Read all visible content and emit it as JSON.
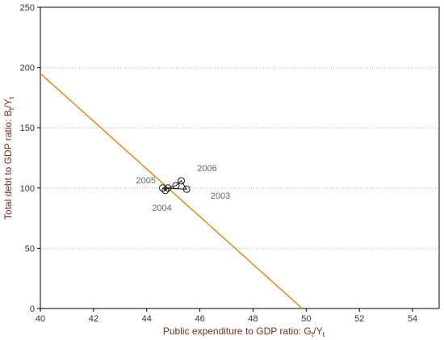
{
  "chart_data": {
    "type": "scatter",
    "title": "",
    "xlabel": {
      "main": "Public expenditure to GDP ratio: G",
      "sub1": "t",
      "mid": "/Y",
      "sub2": "t"
    },
    "ylabel": {
      "main": "Total debt to GDP ratio: B",
      "sub1": "t",
      "mid": "/Y",
      "sub2": "t"
    },
    "xlim": [
      40,
      55
    ],
    "ylim": [
      0,
      250
    ],
    "xticks": [
      "40",
      "42",
      "44",
      "46",
      "48",
      "50",
      "52",
      "54"
    ],
    "yticks": [
      "0",
      "50",
      "100",
      "150",
      "200",
      "250"
    ],
    "grid": true,
    "colors": {
      "line": "#e08a1e",
      "points": "#1a1a1a",
      "axis_text": "#7a2e1e",
      "grid": "#bbbbbb"
    },
    "line": {
      "name": "",
      "x": [
        40,
        49.85
      ],
      "y": [
        195,
        0
      ]
    },
    "points": {
      "x": [
        44.6,
        44.7,
        44.8,
        45.1,
        45.3,
        45.5
      ],
      "y": [
        100,
        98,
        100,
        102,
        106,
        99
      ]
    },
    "path": {
      "x": [
        44.6,
        44.7,
        44.8,
        45.1,
        45.3,
        45.5,
        44.6
      ],
      "y": [
        100,
        98,
        100,
        102,
        106,
        99,
        100
      ]
    },
    "annotations": [
      {
        "text": "2003",
        "x": 46.4,
        "y": 91
      },
      {
        "text": "2004",
        "x": 44.2,
        "y": 81
      },
      {
        "text": "2005",
        "x": 43.6,
        "y": 104
      },
      {
        "text": "2006",
        "x": 45.9,
        "y": 114
      }
    ]
  }
}
